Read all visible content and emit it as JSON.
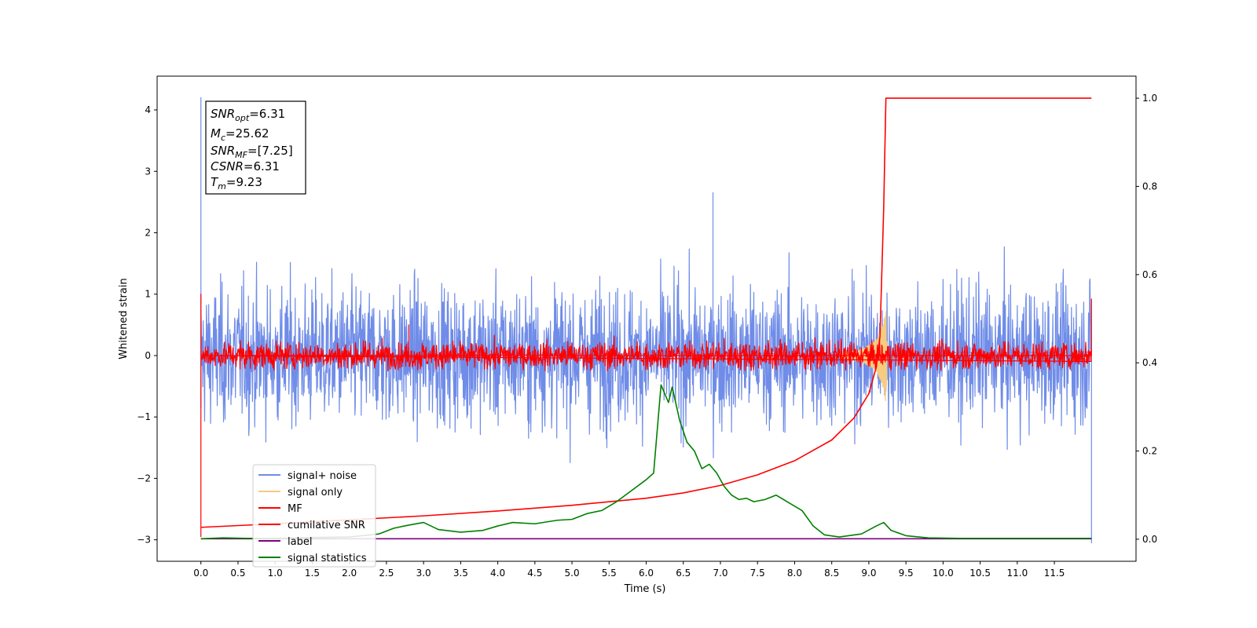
{
  "chart_data": {
    "type": "line",
    "xlabel": "Time (s)",
    "ylabel": "Whitened strain",
    "xlim": [
      -0.59,
      12.6
    ],
    "ylim": [
      -3.35,
      4.55
    ],
    "y2lim": [
      -0.05,
      1.05
    ],
    "xticks": [
      "0.0",
      "0.5",
      "1.0",
      "1.5",
      "2.0",
      "2.5",
      "3.0",
      "3.5",
      "4.0",
      "4.5",
      "5.0",
      "5.5",
      "6.0",
      "6.5",
      "7.0",
      "7.5",
      "8.0",
      "8.5",
      "9.0",
      "9.5",
      "10.0",
      "10.5",
      "11.0",
      "11.5"
    ],
    "yticks": [
      "−3",
      "−2",
      "−1",
      "0",
      "1",
      "2",
      "3",
      "4"
    ],
    "y2ticks": [
      "0.0",
      "0.2",
      "0.4",
      "0.6",
      "0.8",
      "1.0"
    ],
    "info": {
      "snr_opt": {
        "main": "SNR",
        "sub": "opt",
        "value": "=6.31"
      },
      "mc": {
        "main": "M",
        "sub": "c",
        "value": "=25.62"
      },
      "snr_mf": {
        "main": "SNR",
        "sub": "MF",
        "value": "=[7.25]"
      },
      "csnr": {
        "main": "CSNR",
        "sub": "",
        "value": "=6.31"
      },
      "tm": {
        "main": "T",
        "sub": "m",
        "value": "=9.23"
      }
    },
    "legend": {
      "placement": "lower-left",
      "entries": [
        {
          "label": "signal+ noise",
          "color": "#6f8ce8"
        },
        {
          "label": "signal only",
          "color": "#f5cc80"
        },
        {
          "label": "MF",
          "color": "#ff0000"
        },
        {
          "label": "cumilative SNR",
          "color": "#ff0000"
        },
        {
          "label": "label",
          "color": "#800080"
        },
        {
          "label": "signal statistics",
          "color": "#008000"
        }
      ]
    },
    "series": [
      {
        "name": "signal+ noise",
        "axis": "left",
        "color": "#6f8ce8",
        "noise": {
          "t_start": 0.0,
          "t_end": 12.0,
          "amplitude_sd": 0.55,
          "clip": [
            -2.2,
            2.3
          ]
        },
        "spikes": [
          [
            0.0,
            4.2
          ],
          [
            0.0,
            -0.85
          ],
          [
            6.9,
            2.65
          ],
          [
            12.0,
            -3.05
          ]
        ]
      },
      {
        "name": "signal only",
        "axis": "left",
        "color": "#f5cc80",
        "chirp_envelope": [
          [
            8.6,
            0.04
          ],
          [
            8.9,
            0.1
          ],
          [
            9.1,
            0.25
          ],
          [
            9.2,
            0.55
          ],
          [
            9.23,
            0.8
          ],
          [
            9.25,
            0.0
          ]
        ]
      },
      {
        "name": "MF",
        "axis": "left",
        "color": "#ff0000",
        "noise": {
          "t_start": 0.0,
          "t_end": 12.0,
          "amplitude_sd": 0.11,
          "clip": [
            -0.25,
            0.35
          ]
        },
        "spikes": [
          [
            0.0,
            1.0
          ],
          [
            0.0,
            -2.95
          ],
          [
            2.8,
            0.5
          ],
          [
            12.0,
            0.92
          ]
        ]
      },
      {
        "name": "cumilative SNR",
        "axis": "right",
        "color": "#ff0000",
        "x": [
          0.0,
          1.0,
          2.0,
          3.0,
          4.0,
          5.0,
          6.0,
          6.5,
          7.0,
          7.5,
          8.0,
          8.5,
          8.8,
          9.0,
          9.1,
          9.15,
          9.2,
          9.23,
          10.0,
          11.0,
          12.0
        ],
        "y": [
          0.027,
          0.035,
          0.044,
          0.053,
          0.064,
          0.077,
          0.093,
          0.105,
          0.122,
          0.146,
          0.178,
          0.225,
          0.275,
          0.33,
          0.39,
          0.46,
          0.75,
          1.0,
          1.0,
          1.0,
          1.0
        ]
      },
      {
        "name": "label",
        "axis": "right",
        "color": "#800080",
        "x": [
          0.0,
          12.0
        ],
        "y": [
          0.001,
          0.001
        ]
      },
      {
        "name": "signal statistics",
        "axis": "right",
        "color": "#008000",
        "x": [
          0.0,
          0.3,
          0.6,
          1.0,
          1.5,
          2.0,
          2.4,
          2.6,
          2.8,
          3.0,
          3.2,
          3.5,
          3.8,
          4.0,
          4.2,
          4.5,
          4.8,
          5.0,
          5.2,
          5.4,
          5.6,
          5.8,
          6.0,
          6.1,
          6.2,
          6.3,
          6.35,
          6.45,
          6.55,
          6.65,
          6.75,
          6.85,
          6.95,
          7.05,
          7.15,
          7.25,
          7.35,
          7.45,
          7.6,
          7.75,
          7.9,
          8.0,
          8.1,
          8.25,
          8.4,
          8.6,
          8.9,
          9.1,
          9.2,
          9.3,
          9.5,
          9.8,
          10.2,
          11.0,
          12.0
        ],
        "y": [
          0.001,
          0.003,
          0.002,
          0.002,
          0.004,
          0.005,
          0.012,
          0.025,
          0.032,
          0.038,
          0.022,
          0.016,
          0.02,
          0.03,
          0.038,
          0.035,
          0.043,
          0.045,
          0.058,
          0.065,
          0.085,
          0.11,
          0.135,
          0.15,
          0.35,
          0.31,
          0.345,
          0.27,
          0.22,
          0.2,
          0.16,
          0.17,
          0.15,
          0.12,
          0.1,
          0.09,
          0.093,
          0.085,
          0.09,
          0.1,
          0.085,
          0.075,
          0.065,
          0.03,
          0.01,
          0.005,
          0.012,
          0.03,
          0.038,
          0.02,
          0.008,
          0.003,
          0.002,
          0.002,
          0.002
        ]
      }
    ]
  }
}
